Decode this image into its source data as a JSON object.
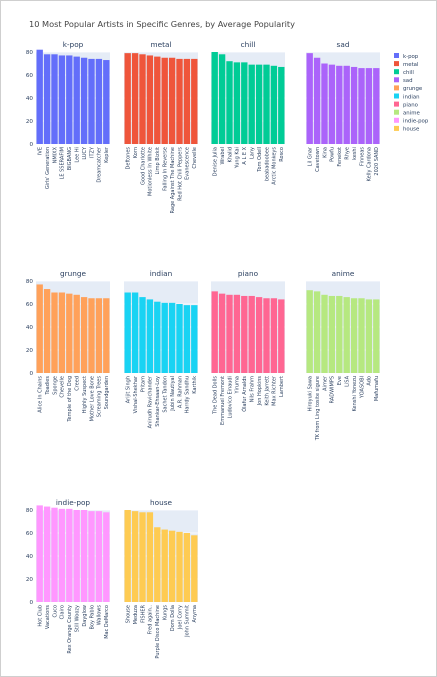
{
  "chart_data": {
    "type": "bar",
    "title": "10 Most Popular Artists in Specific Genres, by Average Popularity",
    "ylim": [
      0,
      80
    ],
    "yticks": [
      0,
      20,
      40,
      60,
      80
    ],
    "grid": true,
    "legend_position": "top-right",
    "legend": [
      {
        "name": "k-pop",
        "color": "#636efa"
      },
      {
        "name": "metal",
        "color": "#ef553b"
      },
      {
        "name": "chill",
        "color": "#00cc96"
      },
      {
        "name": "sad",
        "color": "#ab63fa"
      },
      {
        "name": "grunge",
        "color": "#ffa15a"
      },
      {
        "name": "indian",
        "color": "#19d3f3"
      },
      {
        "name": "piano",
        "color": "#ff6692"
      },
      {
        "name": "anime",
        "color": "#b6e880"
      },
      {
        "name": "indie-pop",
        "color": "#ff97ff"
      },
      {
        "name": "house",
        "color": "#fecb52"
      }
    ],
    "panels": [
      {
        "name": "k-pop",
        "color": "#636efa",
        "categories": [
          "IVE",
          "Girls' Generation",
          "NMIXX",
          "LE SSERAFIM",
          "BIGBANG",
          "Lee Hi",
          "LUCY",
          "ITZY",
          "Dreamcatcher",
          "Kepler"
        ],
        "values": [
          82,
          78,
          78,
          77,
          77,
          76,
          75,
          74,
          74,
          73
        ]
      },
      {
        "name": "metal",
        "color": "#ef553b",
        "categories": [
          "Deftones",
          "Korn",
          "Good Charlotte",
          "Motionless In White",
          "Limp Bizkit",
          "Falling In Reverse",
          "Rage Against The Machine",
          "Red Hot Chili Peppers",
          "Evanescence",
          "Chevelle"
        ],
        "values": [
          79,
          79,
          78,
          77,
          76,
          75,
          75,
          74,
          74,
          74
        ]
      },
      {
        "name": "chill",
        "color": "#00cc96",
        "categories": [
          "Denise Julia",
          "Wrabel",
          "Khalid",
          "Yung Kai",
          "A L E X",
          "Lany",
          "Tom Odell",
          "beabadoobee",
          "Arctic Monkeys",
          "Rosco"
        ],
        "values": [
          80,
          78,
          72,
          71,
          71,
          69,
          69,
          69,
          68,
          67
        ]
      },
      {
        "name": "sad",
        "color": "#ab63fa",
        "categories": [
          "Lil Gnar",
          "Cavetown",
          "Kina",
          "Powfu",
          "Fenekot",
          "Rhye",
          "keshi",
          "Finneas",
          "Kelly Cardona",
          "2020 SAND"
        ],
        "values": [
          79,
          75,
          70,
          69,
          68,
          68,
          67,
          66,
          66,
          66
        ]
      },
      {
        "name": "grunge",
        "color": "#ffa15a",
        "categories": [
          "Alice In Chains",
          "Toadies",
          "Sponge",
          "Chevelle",
          "Temple of the Dog",
          "Creed",
          "Highly Suspect",
          "Mother Love Bone",
          "Screaming Trees",
          "Soundgarden"
        ],
        "values": [
          77,
          73,
          70,
          70,
          69,
          68,
          66,
          65,
          65,
          65
        ]
      },
      {
        "name": "indian",
        "color": "#19d3f3",
        "categories": [
          "Arijit Singh",
          "Vishal-Shekhar",
          "Pritam",
          "Anirudh Ravichander",
          "Shankar-Ehsaan-Loy",
          "Sachet Tandon",
          "Jubin Nautiyal",
          "A.R. Rahman",
          "Harrdy Sandhu",
          "Karthik"
        ],
        "values": [
          70,
          70,
          66,
          64,
          62,
          61,
          61,
          60,
          59,
          59
        ]
      },
      {
        "name": "piano",
        "color": "#ff6692",
        "categories": [
          "The Dead Dolls",
          "Emmanuel Fremont",
          "Ludovico Einaudi",
          "Yiruma",
          "Ólafur Arnalds",
          "Nils Frahm",
          "Jon Hopkins",
          "Keith Jarrett",
          "Max Richter",
          "Lambert"
        ],
        "values": [
          71,
          69,
          68,
          68,
          67,
          67,
          66,
          65,
          65,
          64
        ]
      },
      {
        "name": "anime",
        "color": "#b6e880",
        "categories": [
          "Hiroyuki Sawa",
          "TK from Ling tosite sigure",
          "Aimer",
          "RADWIMPS",
          "Eve",
          "LiSA",
          "Kenshi Yonezu",
          "YOASOBI",
          "Ado",
          "Mafumafu"
        ],
        "values": [
          72,
          71,
          68,
          67,
          67,
          66,
          65,
          65,
          64,
          64
        ]
      },
      {
        "name": "indie-pop",
        "color": "#ff97ff",
        "categories": [
          "Hot Club",
          "Vacations",
          "Cuco",
          "Clairo",
          "Rex Orange County",
          "Still Woozy",
          "Dayglow",
          "Boy Pablo",
          "Wallows",
          "Mac DeMarco"
        ],
        "values": [
          84,
          83,
          82,
          81,
          81,
          80,
          80,
          79,
          79,
          78
        ]
      },
      {
        "name": "house",
        "color": "#fecb52",
        "categories": [
          "Shouse",
          "Meduza",
          "FISHER",
          "Fred again..",
          "Purple Disco Machine",
          "Kungs",
          "Dom Dolla",
          "Joel Corry",
          "John Summit",
          "Anyma"
        ],
        "values": [
          80,
          79,
          78,
          78,
          65,
          63,
          62,
          61,
          60,
          58
        ]
      }
    ]
  }
}
